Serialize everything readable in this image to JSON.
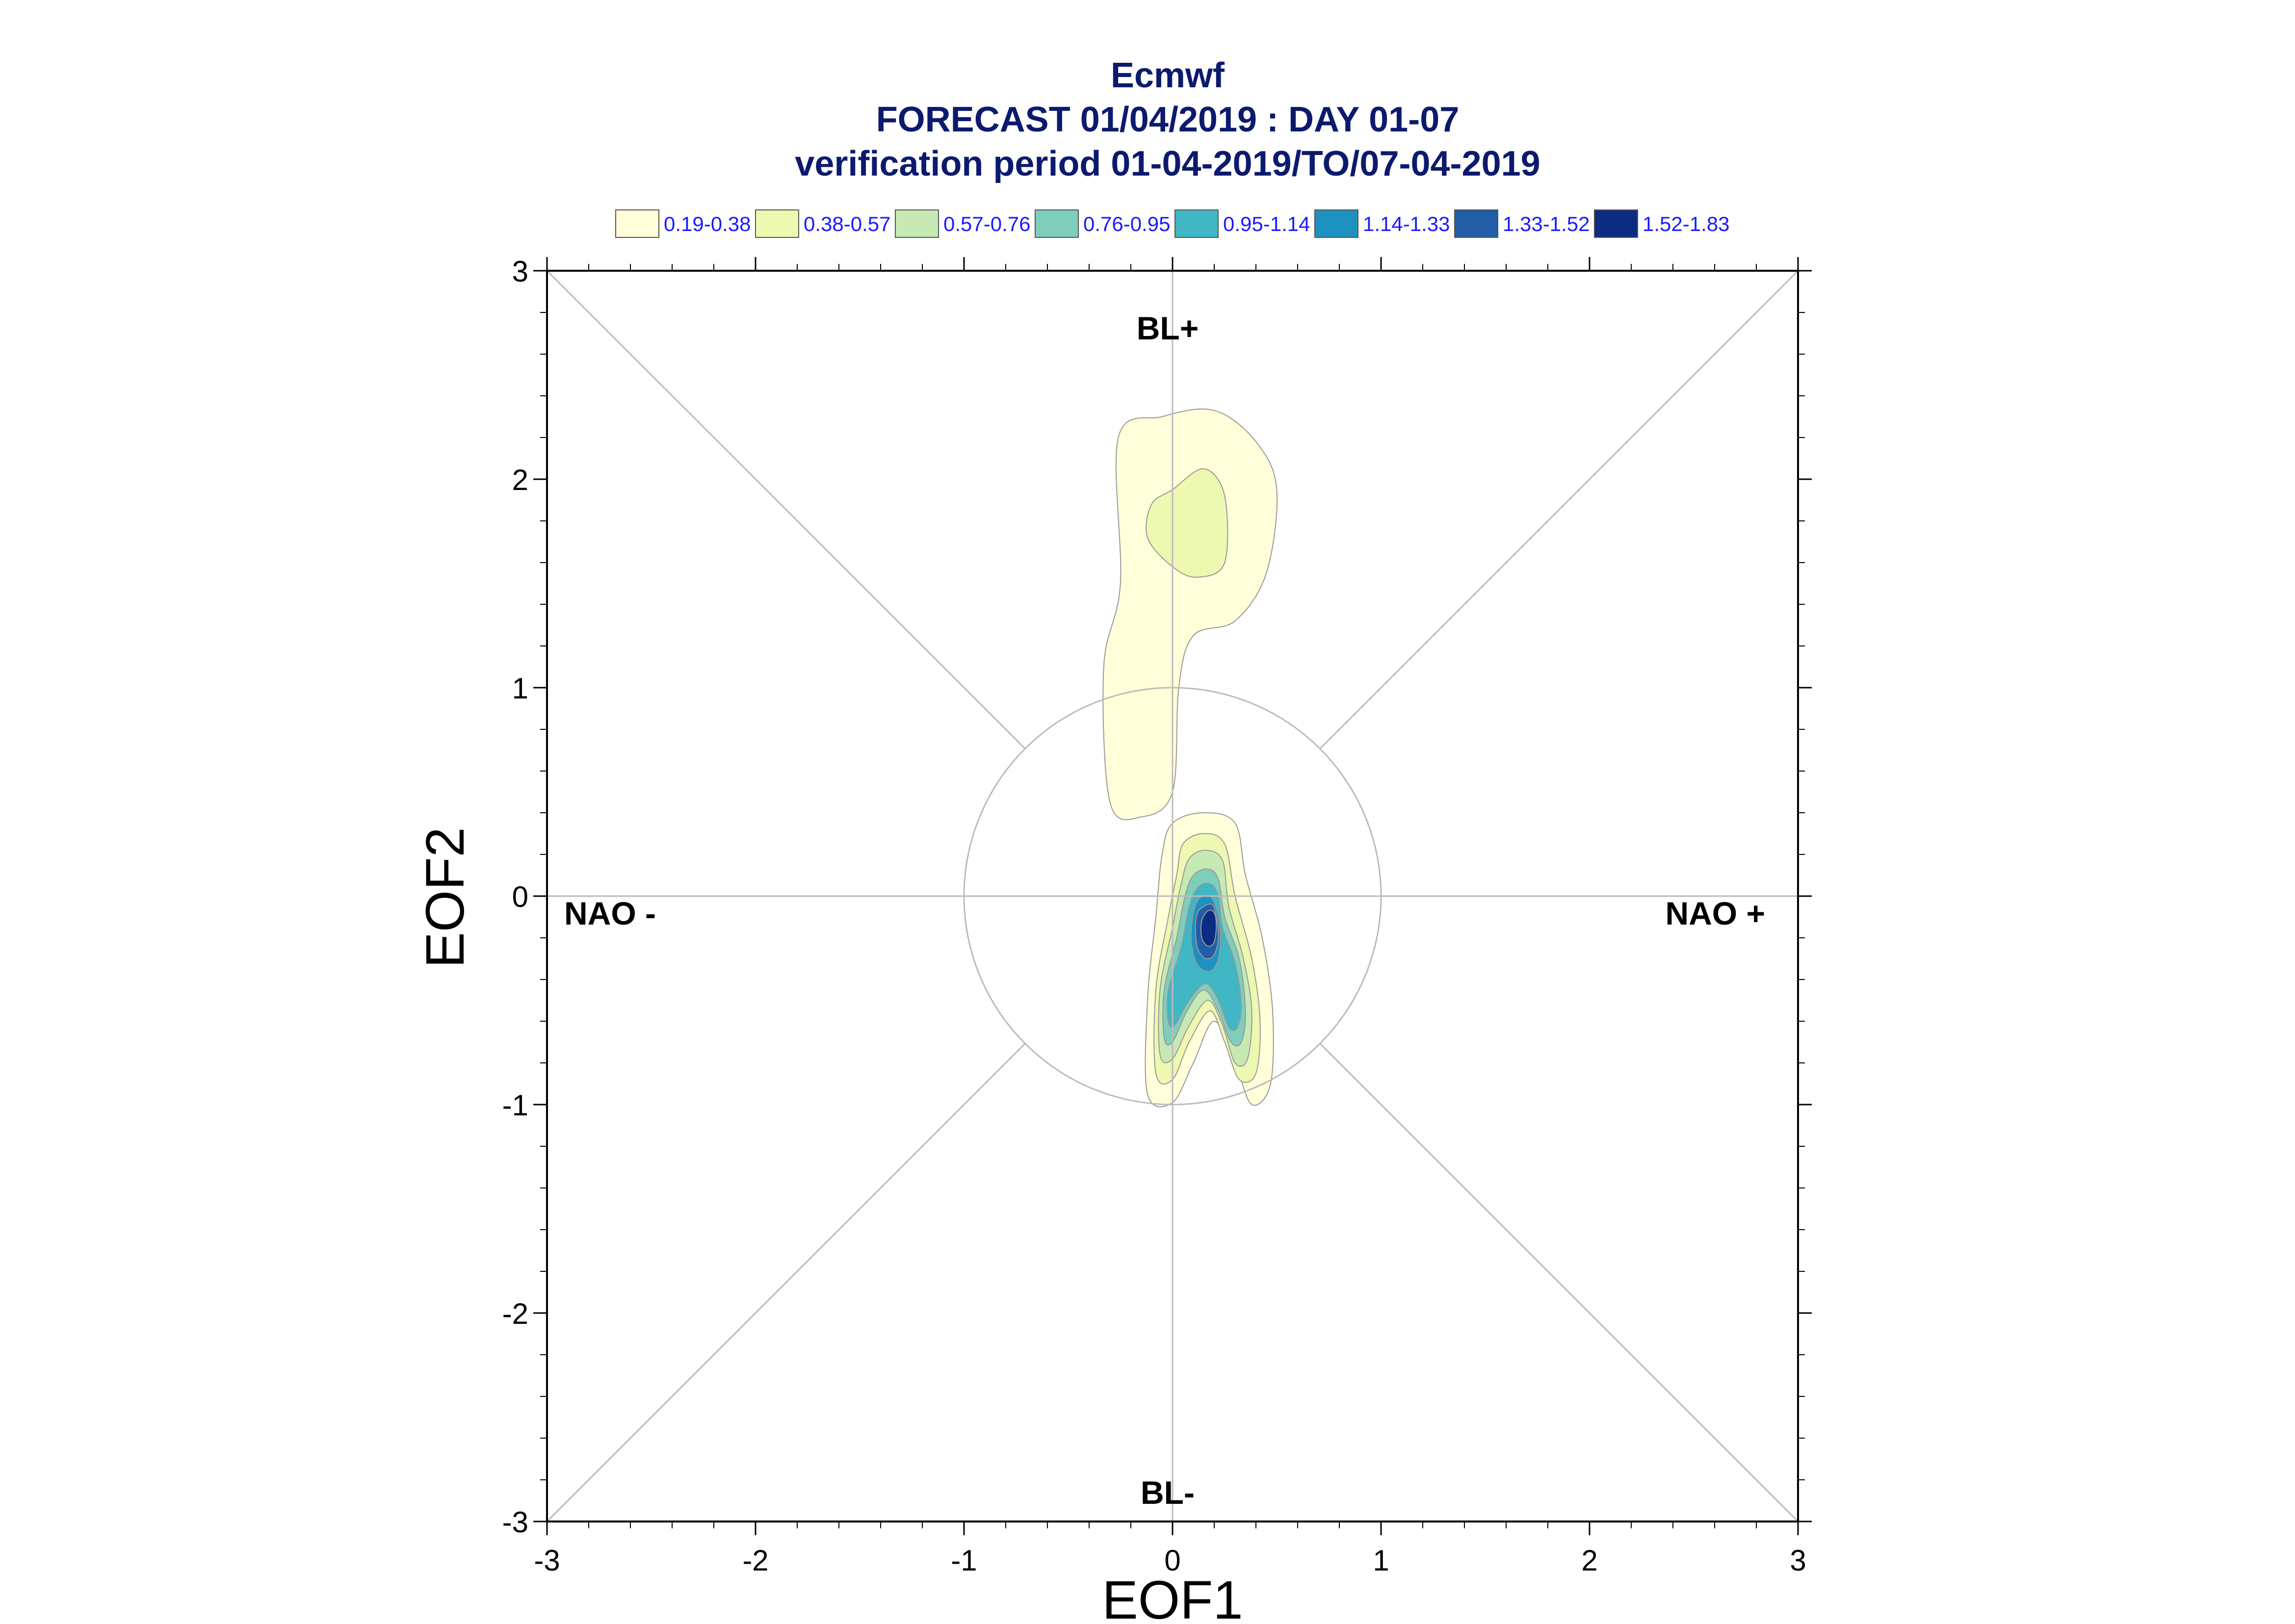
{
  "header": {
    "line1": "Ecmwf",
    "line2": "FORECAST 01/04/2019 : DAY 01-07",
    "line3": "verification period 01-04-2019/TO/07-04-2019"
  },
  "legend": [
    {
      "label": "0.19-0.38",
      "color": "#ffffd9"
    },
    {
      "label": "0.38-0.57",
      "color": "#edf8b1"
    },
    {
      "label": "0.57-0.76",
      "color": "#c7e9b4"
    },
    {
      "label": "0.76-0.95",
      "color": "#7fcdbb"
    },
    {
      "label": "0.95-1.14",
      "color": "#41b6c4"
    },
    {
      "label": "1.14-1.33",
      "color": "#1d91c0"
    },
    {
      "label": "1.33-1.52",
      "color": "#225ea8"
    },
    {
      "label": "1.52-1.83",
      "color": "#0c2c84"
    }
  ],
  "regimes": {
    "top": "BL+",
    "bottom": "BL-",
    "left": "NAO -",
    "right": "NAO +"
  },
  "chart_data": {
    "type": "contour",
    "xlabel": "EOF1",
    "ylabel": "EOF2",
    "xlim": [
      -3,
      3
    ],
    "ylim": [
      -3,
      3
    ],
    "xticks": [
      "-3",
      "-2",
      "-1",
      "0",
      "1",
      "2",
      "3"
    ],
    "yticks": [
      "-3",
      "-2",
      "-1",
      "0",
      "1",
      "2",
      "3"
    ],
    "reference_circle_radius": 1,
    "density_regions": [
      {
        "level": "0.19-0.38",
        "polygon": [
          [
            -0.05,
            2.3
          ],
          [
            0.2,
            2.33
          ],
          [
            0.4,
            2.18
          ],
          [
            0.5,
            1.95
          ],
          [
            0.45,
            1.55
          ],
          [
            0.3,
            1.32
          ],
          [
            0.1,
            1.25
          ],
          [
            0.03,
            1.0
          ],
          [
            0.0,
            0.5
          ],
          [
            -0.15,
            0.38
          ],
          [
            -0.3,
            0.45
          ],
          [
            -0.33,
            1.1
          ],
          [
            -0.25,
            1.5
          ],
          [
            -0.26,
            2.2
          ]
        ]
      },
      {
        "level": "0.38-0.57",
        "polygon": [
          [
            0.0,
            1.95
          ],
          [
            0.15,
            2.05
          ],
          [
            0.25,
            1.92
          ],
          [
            0.25,
            1.6
          ],
          [
            0.12,
            1.53
          ],
          [
            0.0,
            1.58
          ],
          [
            -0.12,
            1.72
          ],
          [
            -0.1,
            1.88
          ]
        ]
      },
      {
        "level": "0.19-0.38",
        "polygon": [
          [
            0.0,
            0.35
          ],
          [
            0.15,
            0.4
          ],
          [
            0.3,
            0.35
          ],
          [
            0.35,
            0.1
          ],
          [
            0.43,
            -0.2
          ],
          [
            0.48,
            -0.55
          ],
          [
            0.47,
            -0.9
          ],
          [
            0.38,
            -1.0
          ],
          [
            0.3,
            -0.8
          ],
          [
            0.2,
            -0.6
          ],
          [
            0.1,
            -0.8
          ],
          [
            0.0,
            -0.99
          ],
          [
            -0.12,
            -0.95
          ],
          [
            -0.12,
            -0.5
          ],
          [
            -0.08,
            -0.1
          ],
          [
            -0.05,
            0.2
          ]
        ]
      },
      {
        "level": "0.38-0.57",
        "polygon": [
          [
            0.05,
            0.25
          ],
          [
            0.15,
            0.3
          ],
          [
            0.25,
            0.25
          ],
          [
            0.3,
            0.0
          ],
          [
            0.38,
            -0.3
          ],
          [
            0.42,
            -0.6
          ],
          [
            0.4,
            -0.85
          ],
          [
            0.32,
            -0.88
          ],
          [
            0.25,
            -0.7
          ],
          [
            0.18,
            -0.55
          ],
          [
            0.08,
            -0.7
          ],
          [
            0.0,
            -0.88
          ],
          [
            -0.08,
            -0.85
          ],
          [
            -0.08,
            -0.45
          ],
          [
            -0.02,
            -0.1
          ],
          [
            0.02,
            0.1
          ]
        ]
      },
      {
        "level": "0.57-0.76",
        "polygon": [
          [
            0.08,
            0.18
          ],
          [
            0.16,
            0.22
          ],
          [
            0.24,
            0.17
          ],
          [
            0.27,
            -0.05
          ],
          [
            0.34,
            -0.3
          ],
          [
            0.38,
            -0.55
          ],
          [
            0.36,
            -0.78
          ],
          [
            0.3,
            -0.8
          ],
          [
            0.24,
            -0.62
          ],
          [
            0.17,
            -0.5
          ],
          [
            0.08,
            -0.62
          ],
          [
            0.0,
            -0.78
          ],
          [
            -0.06,
            -0.76
          ],
          [
            -0.06,
            -0.45
          ],
          [
            0.0,
            -0.15
          ],
          [
            0.04,
            0.05
          ]
        ]
      },
      {
        "level": "0.76-0.95",
        "polygon": [
          [
            0.1,
            0.1
          ],
          [
            0.17,
            0.13
          ],
          [
            0.22,
            0.08
          ],
          [
            0.25,
            -0.1
          ],
          [
            0.32,
            -0.3
          ],
          [
            0.35,
            -0.55
          ],
          [
            0.33,
            -0.7
          ],
          [
            0.28,
            -0.7
          ],
          [
            0.22,
            -0.55
          ],
          [
            0.15,
            -0.45
          ],
          [
            0.07,
            -0.55
          ],
          [
            0.0,
            -0.7
          ],
          [
            -0.04,
            -0.68
          ],
          [
            -0.04,
            -0.45
          ],
          [
            0.02,
            -0.2
          ],
          [
            0.06,
            0.0
          ]
        ]
      },
      {
        "level": "0.95-1.14",
        "polygon": [
          [
            0.12,
            0.04
          ],
          [
            0.18,
            0.06
          ],
          [
            0.22,
            0.0
          ],
          [
            0.24,
            -0.15
          ],
          [
            0.3,
            -0.32
          ],
          [
            0.33,
            -0.52
          ],
          [
            0.31,
            -0.63
          ],
          [
            0.27,
            -0.63
          ],
          [
            0.22,
            -0.5
          ],
          [
            0.16,
            -0.42
          ],
          [
            0.08,
            -0.5
          ],
          [
            0.01,
            -0.62
          ],
          [
            -0.02,
            -0.6
          ],
          [
            -0.02,
            -0.45
          ],
          [
            0.04,
            -0.25
          ],
          [
            0.08,
            -0.05
          ]
        ]
      },
      {
        "level": "1.14-1.33",
        "polygon": [
          [
            0.13,
            -0.01
          ],
          [
            0.18,
            0.0
          ],
          [
            0.21,
            -0.06
          ],
          [
            0.23,
            -0.18
          ],
          [
            0.22,
            -0.3
          ],
          [
            0.18,
            -0.36
          ],
          [
            0.12,
            -0.33
          ],
          [
            0.09,
            -0.22
          ],
          [
            0.1,
            -0.08
          ]
        ]
      },
      {
        "level": "1.33-1.52",
        "polygon": [
          [
            0.15,
            -0.05
          ],
          [
            0.19,
            -0.04
          ],
          [
            0.21,
            -0.1
          ],
          [
            0.22,
            -0.2
          ],
          [
            0.2,
            -0.28
          ],
          [
            0.16,
            -0.3
          ],
          [
            0.12,
            -0.25
          ],
          [
            0.11,
            -0.15
          ],
          [
            0.12,
            -0.08
          ]
        ]
      },
      {
        "level": "1.52-1.83",
        "polygon": [
          [
            0.17,
            -0.07
          ],
          [
            0.2,
            -0.08
          ],
          [
            0.21,
            -0.14
          ],
          [
            0.2,
            -0.22
          ],
          [
            0.17,
            -0.24
          ],
          [
            0.14,
            -0.2
          ],
          [
            0.14,
            -0.12
          ]
        ]
      }
    ]
  }
}
